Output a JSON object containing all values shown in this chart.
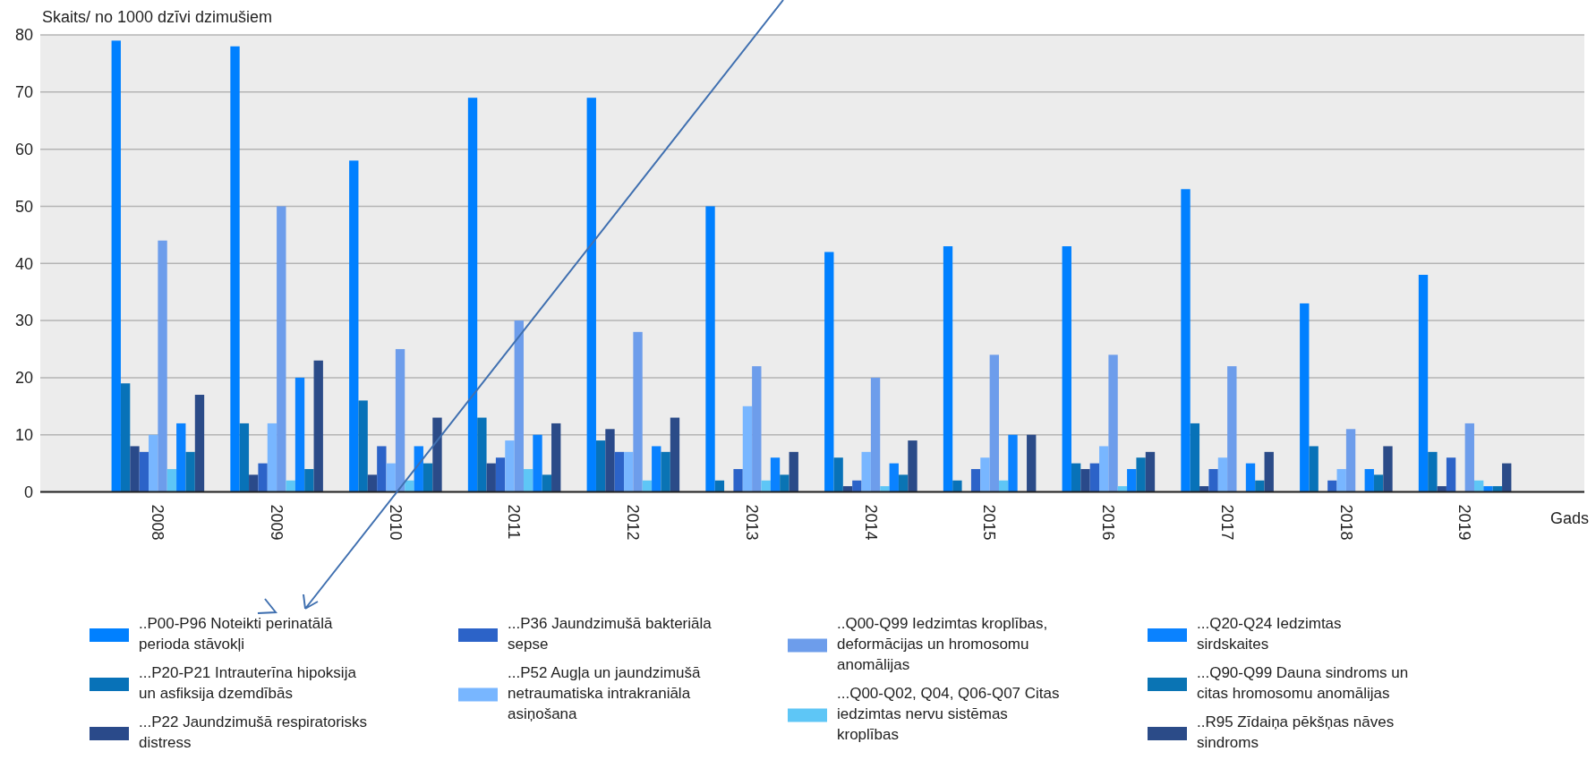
{
  "chart_data": {
    "type": "bar",
    "ylabel": "Skaits/ no 1000 dzīvi dzimušiem",
    "xlabel": "Gads",
    "categories": [
      "2008",
      "2009",
      "2010",
      "2011",
      "2012",
      "2013",
      "2014",
      "2015",
      "2016",
      "2017",
      "2018",
      "2019"
    ],
    "series": [
      {
        "name": "..P00-P96 Noteikti perinatālā perioda stāvokļi",
        "color": "#0080ff",
        "values": [
          79,
          78,
          58,
          69,
          69,
          50,
          42,
          43,
          43,
          53,
          33,
          38
        ]
      },
      {
        "name": "...P20-P21 Intrauterīna hipoksija un asfiksija dzemdībās",
        "color": "#0872b8",
        "values": [
          19,
          12,
          16,
          13,
          9,
          2,
          6,
          2,
          5,
          12,
          8,
          7
        ]
      },
      {
        "name": "...P22 Jaundzimušā respiratorisks distress",
        "color": "#2a4a8a",
        "values": [
          8,
          3,
          3,
          5,
          11,
          0,
          1,
          0,
          4,
          1,
          0,
          1
        ]
      },
      {
        "name": "...P36 Jaundzimušā bakteriāla sepse",
        "color": "#2c63c8",
        "values": [
          7,
          5,
          8,
          6,
          7,
          4,
          2,
          4,
          5,
          4,
          2,
          6
        ]
      },
      {
        "name": "...P52 Augļa un jaundzimušā netraumatiska intrakraniāla asiņošana",
        "color": "#78b6ff",
        "values": [
          10,
          12,
          5,
          9,
          7,
          15,
          7,
          6,
          8,
          6,
          4,
          0
        ]
      },
      {
        "name": "..Q00-Q99 Iedzimtas kroplības, deformācijas un hromosomu anomālijas",
        "color": "#6d9deb",
        "values": [
          44,
          50,
          25,
          30,
          28,
          22,
          20,
          24,
          24,
          22,
          11,
          12
        ]
      },
      {
        "name": "...Q00-Q02, Q04, Q06-Q07 Citas iedzimtas nervu sistēmas kroplības",
        "color": "#5ec6f6",
        "values": [
          4,
          2,
          2,
          4,
          2,
          2,
          1,
          2,
          1,
          0,
          0,
          2
        ]
      },
      {
        "name": "...Q20-Q24 Iedzimtas sirdskaites",
        "color": "#0a82ff",
        "values": [
          12,
          20,
          8,
          10,
          8,
          6,
          5,
          10,
          4,
          5,
          4,
          1
        ]
      },
      {
        "name": "...Q90-Q99 Dauna sindroms un citas hromosomu anomālijas",
        "color": "#0a74b4",
        "values": [
          7,
          4,
          5,
          3,
          7,
          3,
          3,
          0,
          6,
          2,
          3,
          1
        ]
      },
      {
        "name": "..R95 Zīdaiņa pēkšņas nāves sindroms",
        "color": "#2b4b88",
        "values": [
          17,
          23,
          13,
          12,
          13,
          7,
          9,
          10,
          7,
          7,
          8,
          5
        ]
      }
    ],
    "ylim": [
      0,
      80
    ],
    "yticks": [
      0,
      10,
      20,
      30,
      40,
      50,
      60,
      70,
      80
    ],
    "grid": true,
    "legend": "bottom"
  }
}
